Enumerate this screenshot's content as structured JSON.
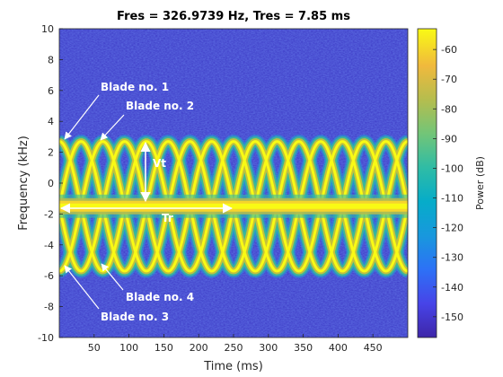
{
  "chart_data": {
    "type": "heatmap",
    "title": "Fres = 326.9739 Hz, Tres = 7.85 ms",
    "xlabel": "Time (ms)",
    "ylabel": "Frequency (kHz)",
    "xlim": [
      0,
      500
    ],
    "ylim": [
      -10,
      10
    ],
    "x_ticks": [
      50,
      100,
      150,
      200,
      250,
      300,
      350,
      400,
      450
    ],
    "y_ticks": [
      -10,
      -8,
      -6,
      -4,
      -2,
      0,
      2,
      4,
      6,
      8,
      10
    ],
    "colorbar": {
      "label": "Power (dB)",
      "range": [
        -157,
        -53
      ],
      "ticks": [
        -60,
        -70,
        -80,
        -90,
        -100,
        -110,
        -120,
        -130,
        -140,
        -150
      ],
      "colormap": "parula",
      "colors": [
        "#3e26a8",
        "#4744e8",
        "#2d71f6",
        "#1898dd",
        "#06acc9",
        "#2fbca5",
        "#72c578",
        "#b5bd4e",
        "#f0b93d",
        "#f9fa14"
      ]
    },
    "signal": {
      "body_line_khz": -1.5,
      "blade_center_khz": -1.5,
      "blade_amplitude_khz": 4.2,
      "rotation_period_ms": 125
    },
    "annotations": {
      "blade1": "Blade no. 1",
      "blade2": "Blade no. 2",
      "blade3": "Blade no. 3",
      "blade4": "Blade no. 4",
      "vt": "Vt",
      "tr": "Tr"
    },
    "grid": false
  }
}
